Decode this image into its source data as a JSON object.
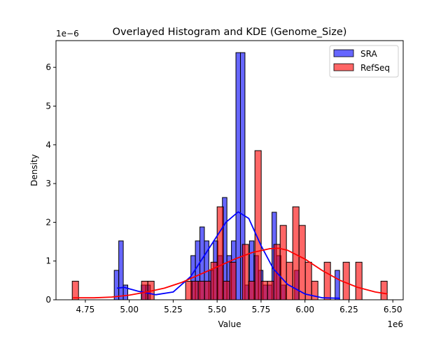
{
  "chart_data": {
    "type": "bar",
    "title": "Overlayed Histogram and KDE (Genome_Size)",
    "xlabel": "Value",
    "ylabel": "Density",
    "x_offset_label": "1e6",
    "y_offset_label": "1e−6",
    "xlim": [
      4.583,
      6.559
    ],
    "ylim": [
      0,
      6.69
    ],
    "x_ticks": [
      "4.75",
      "5.00",
      "5.25",
      "5.50",
      "5.75",
      "6.00",
      "6.25",
      "6.50"
    ],
    "x_tick_values": [
      4.75,
      5.0,
      5.25,
      5.5,
      5.75,
      6.0,
      6.25,
      6.5
    ],
    "y_ticks": [
      "0",
      "1",
      "2",
      "3",
      "4",
      "5",
      "6"
    ],
    "y_tick_values": [
      0,
      1,
      2,
      3,
      4,
      5,
      6
    ],
    "grid": false,
    "legend_position": "top-right",
    "series": [
      {
        "name": "SRA",
        "color": "#0000ff",
        "bin_start": 4.9145,
        "bin_width": 0.02565,
        "values": [
          0.76,
          1.52,
          0.38,
          0,
          0,
          0,
          0.38,
          0.38,
          0,
          0,
          0,
          0,
          0,
          0,
          0,
          0,
          0,
          1.14,
          1.52,
          1.88,
          1.52,
          0.76,
          1.52,
          1.14,
          2.64,
          1.14,
          1.52,
          6.38,
          6.38,
          0.38,
          1.52,
          1.14,
          0.76,
          0.38,
          0.38,
          2.26,
          1.14,
          0.38,
          0,
          0,
          0.76,
          0,
          0,
          0,
          0,
          0,
          0,
          0,
          0,
          0.76
        ],
        "kde": [
          [
            4.93,
            0.3
          ],
          [
            4.97,
            0.32
          ],
          [
            5.05,
            0.22
          ],
          [
            5.15,
            0.13
          ],
          [
            5.25,
            0.2
          ],
          [
            5.35,
            0.6
          ],
          [
            5.45,
            1.3
          ],
          [
            5.55,
            2.0
          ],
          [
            5.62,
            2.27
          ],
          [
            5.68,
            2.1
          ],
          [
            5.75,
            1.4
          ],
          [
            5.82,
            0.8
          ],
          [
            5.9,
            0.4
          ],
          [
            6.0,
            0.15
          ],
          [
            6.1,
            0.05
          ],
          [
            6.2,
            0.04
          ]
        ]
      },
      {
        "name": "RefSeq",
        "color": "#ff0000",
        "bin_start": 4.6755,
        "bin_width": 0.03585,
        "values": [
          0.48,
          0,
          0,
          0,
          0,
          0,
          0,
          0,
          0,
          0,
          0,
          0.48,
          0.48,
          0,
          0,
          0,
          0,
          0,
          0.48,
          0.48,
          0.48,
          0.48,
          0.97,
          2.4,
          0.48,
          0.97,
          0,
          1.43,
          0.48,
          3.85,
          0.48,
          0.48,
          1.43,
          1.92,
          0.97,
          2.4,
          1.92,
          0.97,
          0.48,
          0,
          0.97,
          0,
          0,
          0.97,
          0,
          0.97,
          0,
          0,
          0,
          0.48
        ],
        "kde": [
          [
            4.68,
            0.05
          ],
          [
            4.8,
            0.05
          ],
          [
            4.9,
            0.07
          ],
          [
            5.0,
            0.12
          ],
          [
            5.1,
            0.2
          ],
          [
            5.2,
            0.3
          ],
          [
            5.3,
            0.45
          ],
          [
            5.4,
            0.65
          ],
          [
            5.5,
            0.85
          ],
          [
            5.6,
            1.05
          ],
          [
            5.7,
            1.22
          ],
          [
            5.8,
            1.32
          ],
          [
            5.85,
            1.33
          ],
          [
            5.9,
            1.28
          ],
          [
            6.0,
            1.05
          ],
          [
            6.1,
            0.75
          ],
          [
            6.2,
            0.5
          ],
          [
            6.3,
            0.32
          ],
          [
            6.4,
            0.2
          ],
          [
            6.47,
            0.15
          ]
        ]
      }
    ]
  }
}
